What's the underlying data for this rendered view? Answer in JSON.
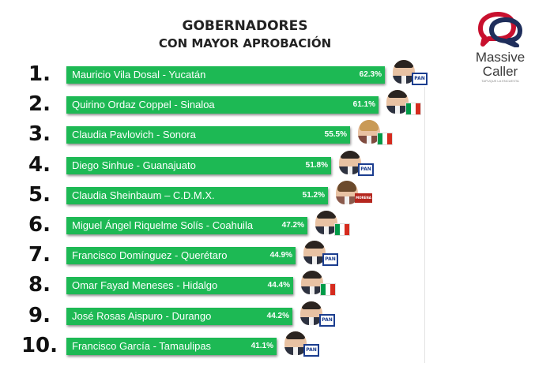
{
  "title": {
    "line1": "GOBERNADORES",
    "line2": "CON MAYOR APROBACIÓN"
  },
  "logo": {
    "brand_line1": "Massive",
    "brand_line2": "Caller",
    "tagline": "TAPUQUE LA ENCUESTA",
    "colors": {
      "red": "#c8102e",
      "navy": "#1f2e5b"
    }
  },
  "party_labels": {
    "pan": "PAN",
    "morena": "MORENA"
  },
  "colors": {
    "bar": "#1db954",
    "pan": "#1b3d8f",
    "pri_green": "#009b48",
    "pri_white": "#ffffff",
    "pri_red": "#d52b1e",
    "morena": "#b5261e"
  },
  "chart_data": {
    "type": "bar",
    "orientation": "horizontal",
    "title": "GOBERNADORES CON MAYOR APROBACIÓN",
    "unit": "%",
    "items": [
      {
        "rank": "1.",
        "label": "Mauricio Vila Dosal - Yucatán",
        "value": 62.3,
        "value_label": "62.3%",
        "party": "pan",
        "photo": "man-icon"
      },
      {
        "rank": "2.",
        "label": "Quirino Ordaz Coppel - Sinaloa",
        "value": 61.1,
        "value_label": "61.1%",
        "party": "pri",
        "photo": "man-icon"
      },
      {
        "rank": "3.",
        "label": "Claudia Pavlovich - Sonora",
        "value": 55.5,
        "value_label": "55.5%",
        "party": "pri",
        "photo": "woman-blonde-icon"
      },
      {
        "rank": "4.",
        "label": "Diego Sinhue - Guanajuato",
        "value": 51.8,
        "value_label": "51.8%",
        "party": "pan",
        "photo": "man-icon"
      },
      {
        "rank": "5.",
        "label": "Claudia Sheinbaum – C.D.M.X.",
        "value": 51.2,
        "value_label": "51.2%",
        "party": "morena",
        "photo": "woman-icon"
      },
      {
        "rank": "6.",
        "label": "Miguel Ángel Riquelme Solís - Coahuila",
        "value": 47.2,
        "value_label": "47.2%",
        "party": "pri",
        "photo": "man-icon"
      },
      {
        "rank": "7.",
        "label": "Francisco Domínguez - Querétaro",
        "value": 44.9,
        "value_label": "44.9%",
        "party": "pan",
        "photo": "man-icon"
      },
      {
        "rank": "8.",
        "label": "Omar Fayad Meneses - Hidalgo",
        "value": 44.4,
        "value_label": "44.4%",
        "party": "pri",
        "photo": "man-icon"
      },
      {
        "rank": "9.",
        "label": "José Rosas Aispuro - Durango",
        "value": 44.2,
        "value_label": "44.2%",
        "party": "pan",
        "photo": "man-icon"
      },
      {
        "rank": "10.",
        "label": "Francisco García - Tamaulipas",
        "value": 41.1,
        "value_label": "41.1%",
        "party": "pan",
        "photo": "man-icon"
      }
    ]
  }
}
